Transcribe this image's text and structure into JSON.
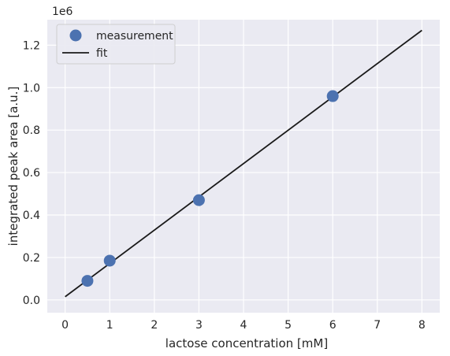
{
  "chart_data": {
    "type": "scatter",
    "xlabel": "lactose concentration [mM]",
    "ylabel": "integrated peak area [a.u.]",
    "y_scale_note": "1e6",
    "xlim": [
      -0.4,
      8.4
    ],
    "ylim": [
      -0.06,
      1.32
    ],
    "x_ticks": [
      0,
      1,
      2,
      3,
      4,
      5,
      6,
      7,
      8
    ],
    "x_tick_labels": [
      "0",
      "1",
      "2",
      "3",
      "4",
      "5",
      "6",
      "7",
      "8"
    ],
    "y_ticks": [
      0.0,
      0.2,
      0.4,
      0.6,
      0.8,
      1.0,
      1.2
    ],
    "y_tick_labels": [
      "0.0",
      "0.2",
      "0.4",
      "0.6",
      "0.8",
      "1.0",
      "1.2"
    ],
    "grid": true,
    "legend_position": "top-left",
    "series": [
      {
        "name": "measurement",
        "kind": "points",
        "color": "#4c72b0",
        "x": [
          0.5,
          1,
          3,
          6
        ],
        "y": [
          0.09,
          0.185,
          0.47,
          0.96
        ]
      },
      {
        "name": "fit",
        "kind": "line",
        "color": "#1a1a1a",
        "x": [
          0,
          8
        ],
        "y": [
          0.015,
          1.27
        ]
      }
    ],
    "colors": {
      "plot_background": "#eaeaf2",
      "grid": "#ffffff",
      "text": "#262626"
    }
  }
}
